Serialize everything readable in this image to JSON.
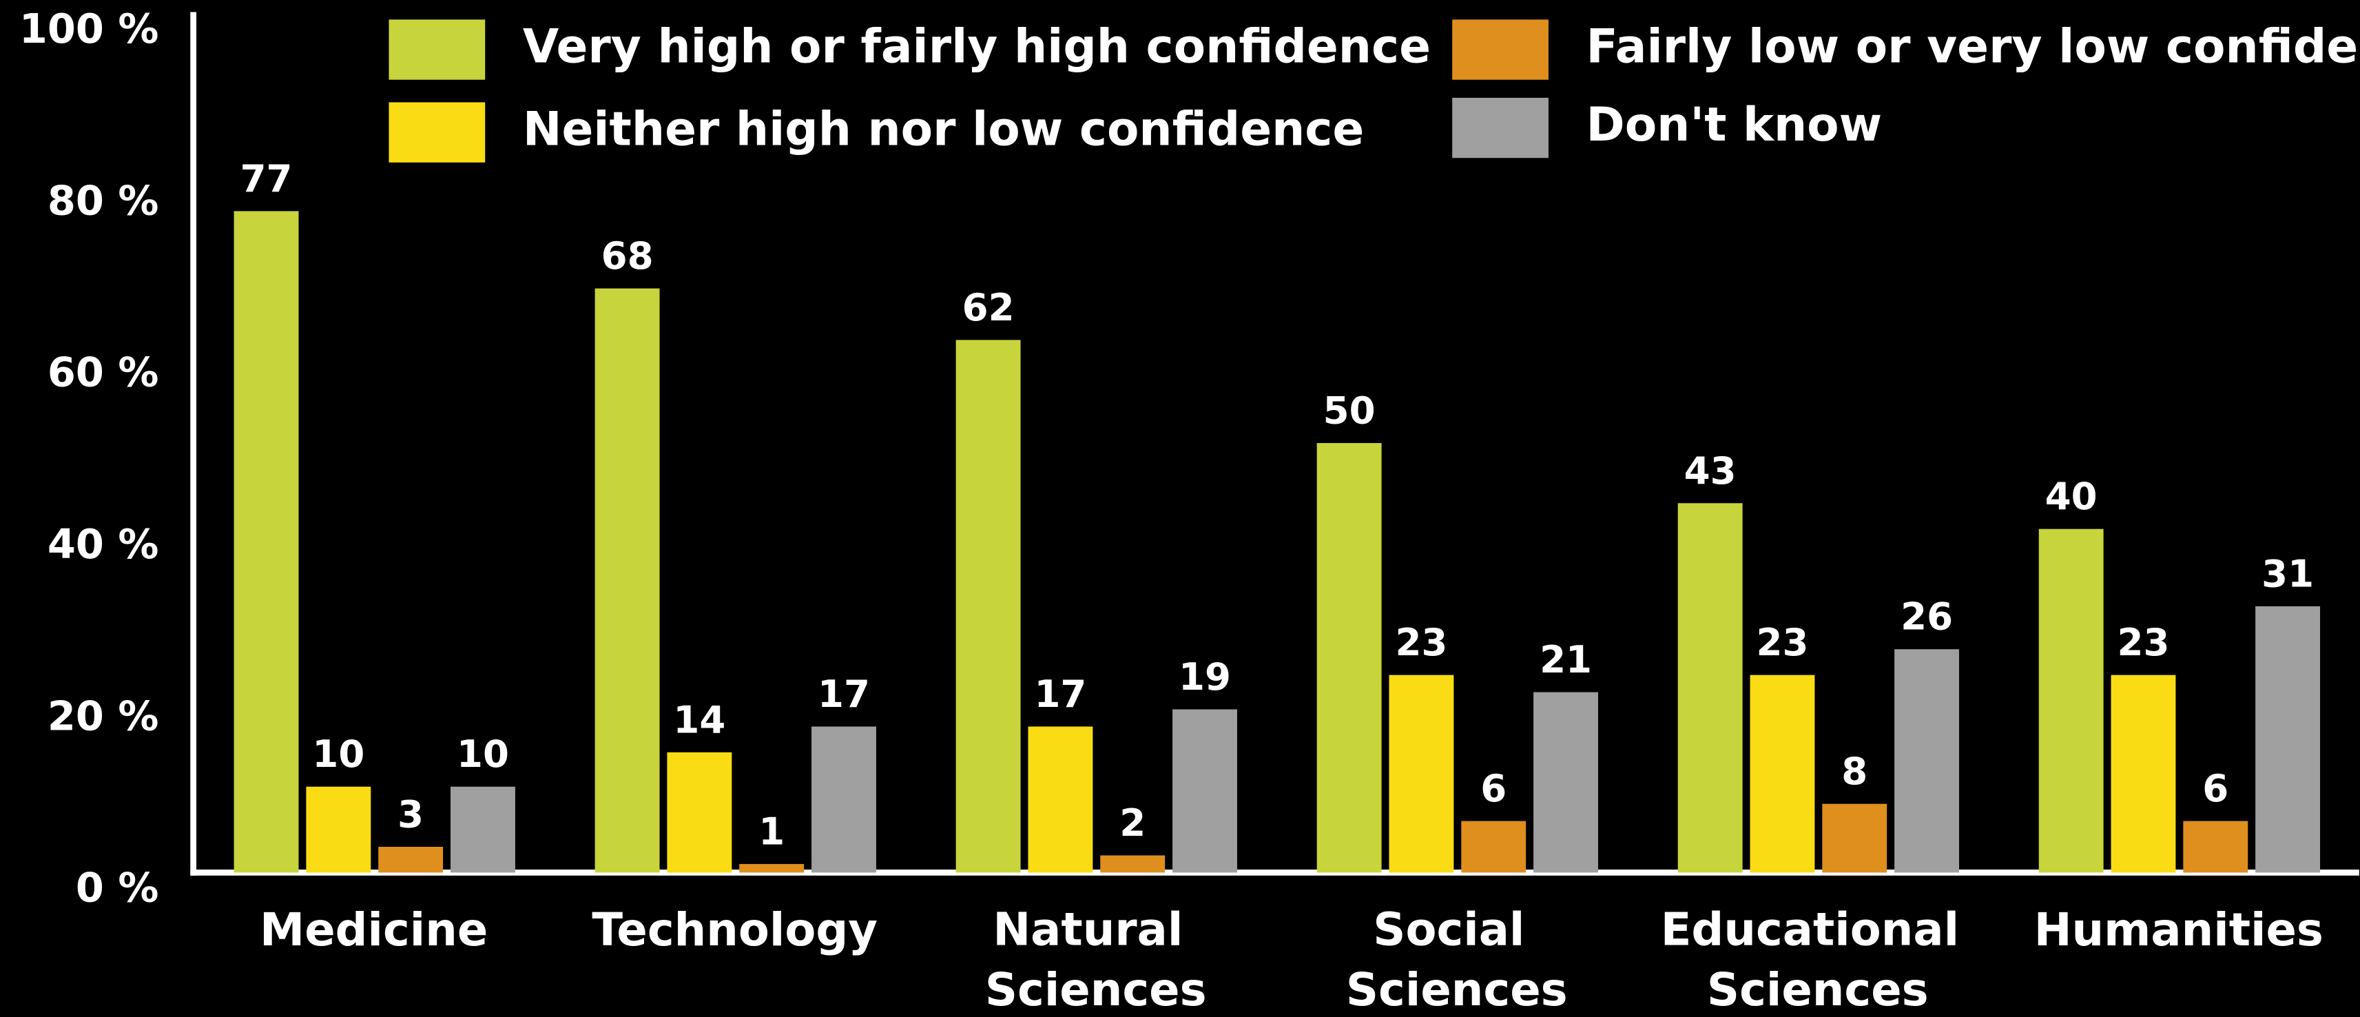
{
  "chart_data": {
    "type": "bar",
    "categories": [
      "Medicine",
      "Technology",
      "Natural Sciences",
      "Social Sciences",
      "Educational Sciences",
      "Humanities"
    ],
    "series": [
      {
        "name": "Very high or fairly high confidence",
        "color": "#c8d43c",
        "values": [
          77,
          68,
          62,
          50,
          43,
          40
        ]
      },
      {
        "name": "Neither high nor low confidence",
        "color": "#f9dc14",
        "values": [
          10,
          14,
          17,
          23,
          23,
          23
        ]
      },
      {
        "name": "Fairly low or very low confidence",
        "color": "#de8f1e",
        "values": [
          3,
          1,
          2,
          6,
          8,
          6
        ]
      },
      {
        "name": "Don't know",
        "color": "#a0a0a0",
        "values": [
          10,
          17,
          19,
          21,
          26,
          31
        ]
      }
    ],
    "ylim": [
      0,
      100
    ],
    "yticks": [
      {
        "value": 0,
        "label": "0 %"
      },
      {
        "value": 20,
        "label": "20 %"
      },
      {
        "value": 40,
        "label": "40 %"
      },
      {
        "value": 60,
        "label": "60 %"
      },
      {
        "value": 80,
        "label": "80 %"
      },
      {
        "value": 100,
        "label": "100 %"
      }
    ],
    "grid": false
  }
}
